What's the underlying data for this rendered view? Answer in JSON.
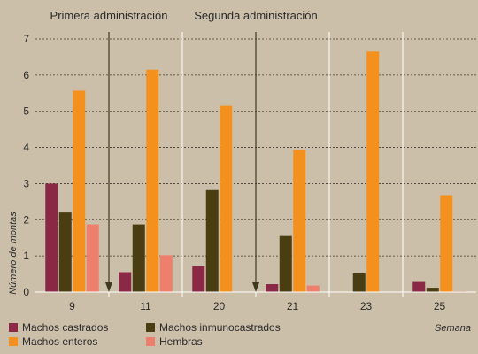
{
  "chart_data": {
    "type": "bar",
    "categories": [
      "9",
      "11",
      "20",
      "21",
      "23",
      "25"
    ],
    "series": [
      {
        "name": "Machos castrados",
        "color": "#8a2846",
        "values": [
          3.0,
          0.55,
          0.72,
          0.22,
          0.0,
          0.28
        ]
      },
      {
        "name": "Machos inmunocastrados",
        "color": "#4a3d12",
        "values": [
          2.2,
          1.87,
          2.82,
          1.55,
          0.52,
          0.12
        ]
      },
      {
        "name": "Machos enteros",
        "color": "#f4911e",
        "values": [
          5.57,
          6.15,
          5.15,
          3.93,
          6.65,
          2.68
        ]
      },
      {
        "name": "Hembras",
        "color": "#ee7f6d",
        "values": [
          1.87,
          1.02,
          0.0,
          0.18,
          0.0,
          0.02
        ]
      }
    ],
    "xlabel": "Semana",
    "ylabel": "Número de montas",
    "ylim": [
      0,
      7
    ],
    "yticks": [
      "0",
      "1",
      "2",
      "3",
      "4",
      "5",
      "6",
      "7"
    ],
    "grid": true,
    "legend_position": "bottom",
    "annotations": [
      {
        "text": "Primera administración",
        "between": [
          "9",
          "11"
        ]
      },
      {
        "text": "Segunda administración",
        "between": [
          "20",
          "21"
        ]
      }
    ]
  }
}
